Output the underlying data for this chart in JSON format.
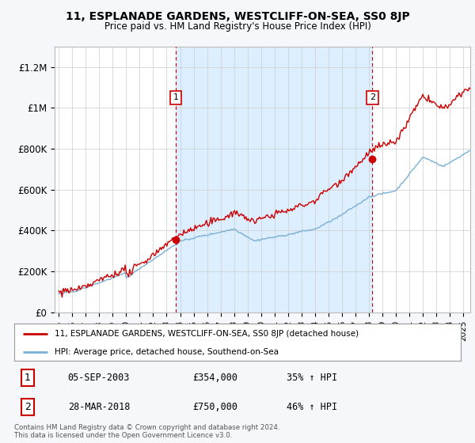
{
  "title": "11, ESPLANADE GARDENS, WESTCLIFF-ON-SEA, SS0 8JP",
  "subtitle": "Price paid vs. HM Land Registry's House Price Index (HPI)",
  "ylim": [
    0,
    1300000
  ],
  "yticks": [
    0,
    200000,
    400000,
    600000,
    800000,
    1000000,
    1200000
  ],
  "ytick_labels": [
    "£0",
    "£200K",
    "£400K",
    "£600K",
    "£800K",
    "£1M",
    "£1.2M"
  ],
  "xlim_start": 1994.7,
  "xlim_end": 2025.5,
  "sale1_year": 2003.68,
  "sale1_price": 354000,
  "sale1_label": "1",
  "sale1_date": "05-SEP-2003",
  "sale1_pct": "35%",
  "sale2_year": 2018.24,
  "sale2_price": 750000,
  "sale2_label": "2",
  "sale2_date": "28-MAR-2018",
  "sale2_pct": "46%",
  "line_color_property": "#cc0000",
  "line_color_hpi": "#7ab0d4",
  "shade_color": "#ddeeff",
  "legend_label_property": "11, ESPLANADE GARDENS, WESTCLIFF-ON-SEA, SS0 8JP (detached house)",
  "legend_label_hpi": "HPI: Average price, detached house, Southend-on-Sea",
  "footer_line1": "Contains HM Land Registry data © Crown copyright and database right 2024.",
  "footer_line2": "This data is licensed under the Open Government Licence v3.0.",
  "background_color": "#f5f7fa",
  "plot_bg_color": "#ffffff",
  "grid_color": "#cccccc",
  "dashed_color": "#cc0000"
}
